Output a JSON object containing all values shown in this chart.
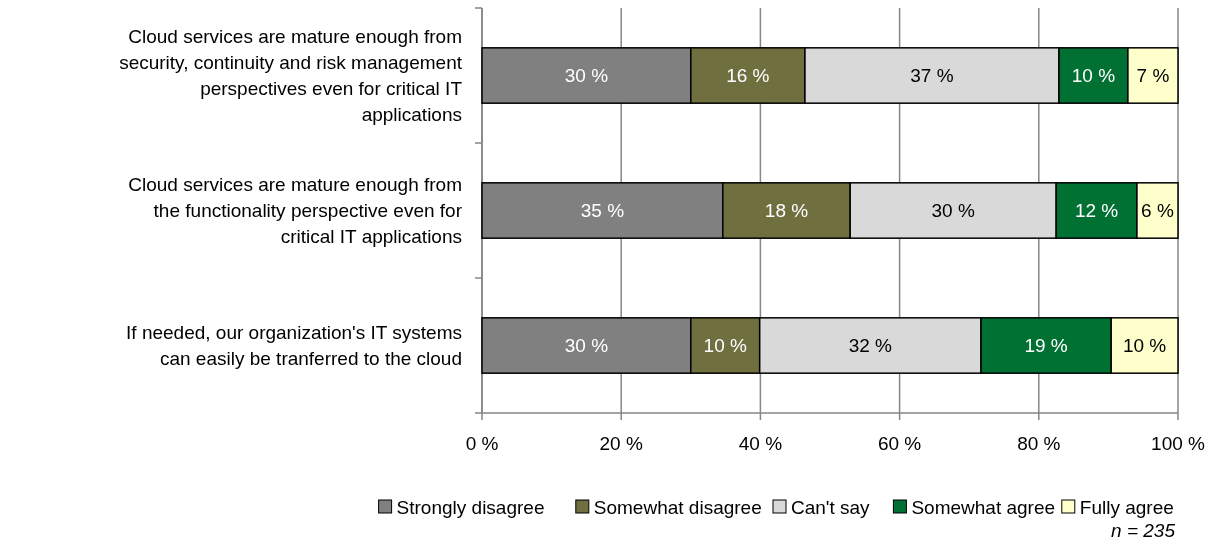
{
  "chart_data": {
    "type": "bar",
    "orientation": "horizontal",
    "stacked": true,
    "categories": [
      "Cloud services are mature enough from security, continuity and risk management perspectives even for critical IT applications",
      "Cloud services are mature enough from the functionality perspective even for critical IT applications",
      "If needed, our organization's IT systems can easily be tranferred to the cloud"
    ],
    "series": [
      {
        "name": "Strongly disagree",
        "color": "#808080",
        "values": [
          30,
          34.6,
          30
        ],
        "value_labels": [
          "30 %",
          "35 %",
          "30 %"
        ]
      },
      {
        "name": "Somewhat disagree",
        "color": "#6f6f3f",
        "values": [
          16.4,
          18.3,
          9.9
        ],
        "value_labels": [
          "16 %",
          "18 %",
          "10 %"
        ]
      },
      {
        "name": "Can't say",
        "color": "#d9d9d9",
        "values": [
          36.5,
          29.6,
          31.8
        ],
        "value_labels": [
          "37 %",
          "30 %",
          "32 %"
        ]
      },
      {
        "name": "Somewhat agree",
        "color": "#007033",
        "values": [
          9.9,
          11.6,
          18.7
        ],
        "value_labels": [
          "10 %",
          "12 %",
          "19 %"
        ]
      },
      {
        "name": "Fully agree",
        "color": "#ffffcc",
        "values": [
          7.2,
          5.9,
          9.6
        ],
        "value_labels": [
          "7 %",
          "6 %",
          "10 %"
        ]
      }
    ],
    "xlim": [
      0,
      100
    ],
    "xticks": [
      {
        "value": 0,
        "label": "0 %"
      },
      {
        "value": 20,
        "label": "20 %"
      },
      {
        "value": 40,
        "label": "40 %"
      },
      {
        "value": 60,
        "label": "60 %"
      },
      {
        "value": 80,
        "label": "80 %"
      },
      {
        "value": 100,
        "label": "100 %"
      }
    ],
    "grid": "x",
    "legend": "bottom",
    "annotations": [
      "n = 235"
    ]
  }
}
